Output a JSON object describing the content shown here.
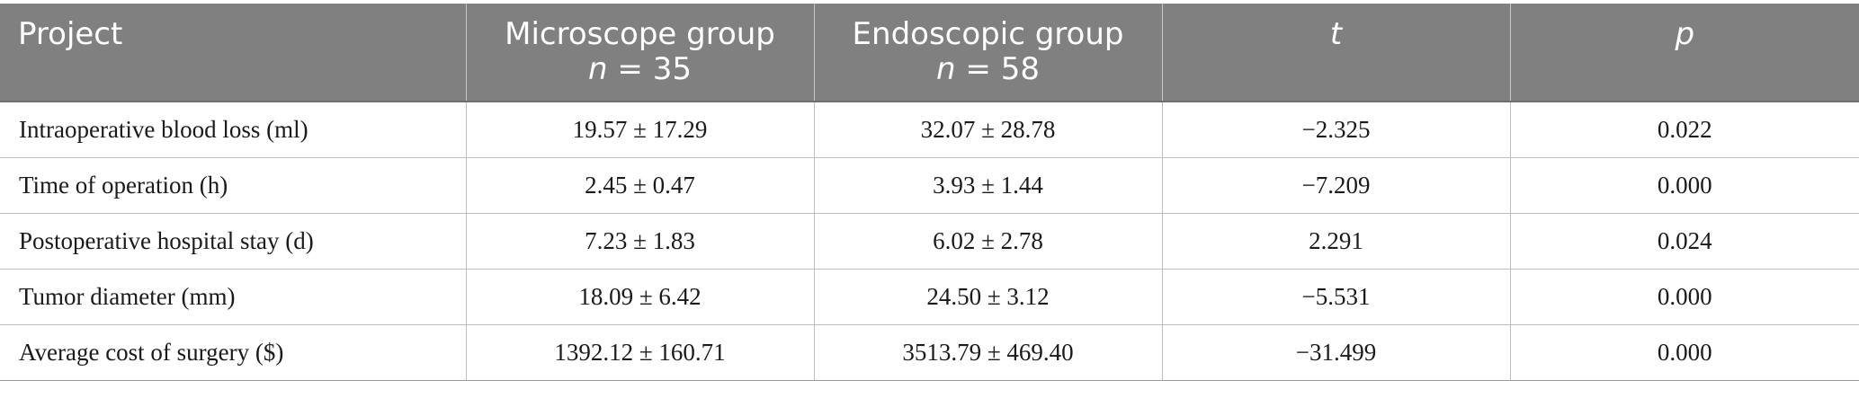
{
  "header": {
    "project": "Project",
    "microscope": {
      "line1": "Microscope group",
      "n_var": "n",
      "n_rest": " = 35"
    },
    "endoscopic": {
      "line1": "Endoscopic group",
      "n_var": "n",
      "n_rest": " = 58"
    },
    "t": "t",
    "p": "p"
  },
  "rows": [
    {
      "project": "Intraoperative blood loss (ml)",
      "microscope": "19.57 ± 17.29",
      "endoscopic": "32.07 ± 28.78",
      "t": "−2.325",
      "p": "0.022"
    },
    {
      "project": "Time of operation (h)",
      "microscope": "2.45 ± 0.47",
      "endoscopic": "3.93 ± 1.44",
      "t": "−7.209",
      "p": "0.000"
    },
    {
      "project": "Postoperative hospital stay (d)",
      "microscope": "7.23 ± 1.83",
      "endoscopic": "6.02 ± 2.78",
      "t": "2.291",
      "p": "0.024"
    },
    {
      "project": "Tumor diameter (mm)",
      "microscope": "18.09 ± 6.42",
      "endoscopic": "24.50 ± 3.12",
      "t": "−5.531",
      "p": "0.000"
    },
    {
      "project": "Average cost of surgery ($)",
      "microscope": "1392.12 ± 160.71",
      "endoscopic": "3513.79 ± 469.40",
      "t": "−31.499",
      "p": "0.000"
    }
  ],
  "colors": {
    "header_bg": "#808080",
    "header_text": "#ffffff",
    "grid": "#bdbdbd"
  }
}
